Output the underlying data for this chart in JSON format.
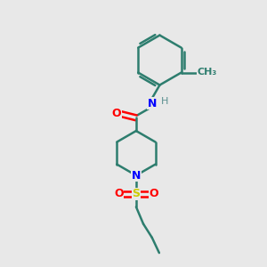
{
  "background_color": "#e8e8e8",
  "bond_color": "#2d7d6e",
  "N_color": "#0000ff",
  "O_color": "#ff0000",
  "S_color": "#cccc00",
  "H_color": "#5a9090",
  "line_width": 1.8,
  "fig_size": [
    3.0,
    3.0
  ],
  "dpi": 100,
  "xlim": [
    0,
    10
  ],
  "ylim": [
    0,
    10
  ]
}
